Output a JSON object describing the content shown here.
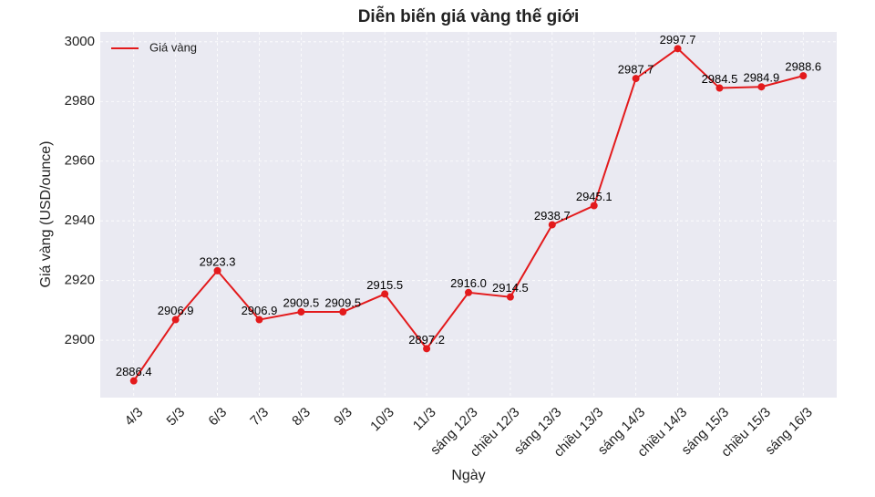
{
  "chart_data": {
    "type": "line",
    "title": "Diễn biến giá vàng thế giới",
    "x_label": "Ngày",
    "y_label": "Giá vàng (USD/ounce)",
    "categories": [
      "4/3",
      "5/3",
      "6/3",
      "7/3",
      "8/3",
      "9/3",
      "10/3",
      "11/3",
      "sáng 12/3",
      "chiều 12/3",
      "sáng 13/3",
      "chiều 13/3",
      "sáng 14/3",
      "chiều 14/3",
      "sáng 15/3",
      "chiều 15/3",
      "sáng 16/3"
    ],
    "series": [
      {
        "name": "Giá vàng",
        "color": "#e31a1c",
        "values": [
          2886.4,
          2906.9,
          2923.3,
          2906.9,
          2909.5,
          2909.5,
          2915.5,
          2897.2,
          2916.0,
          2914.5,
          2938.7,
          2945.1,
          2987.7,
          2997.7,
          2984.5,
          2984.9,
          2988.6
        ],
        "value_labels": [
          "2886.4",
          "2906.9",
          "2923.3",
          "2906.9",
          "2909.5",
          "2909.5",
          "2915.5",
          "2897.2",
          "2916.0",
          "2914.5",
          "2938.7",
          "2945.1",
          "2987.7",
          "2997.7",
          "2984.5",
          "2984.9",
          "2988.6"
        ]
      }
    ],
    "ylim": [
      2880.8,
      3003.3
    ],
    "yticks": [
      2900,
      2920,
      2940,
      2960,
      2980,
      3000
    ],
    "grid": true,
    "legend": "upper left"
  }
}
